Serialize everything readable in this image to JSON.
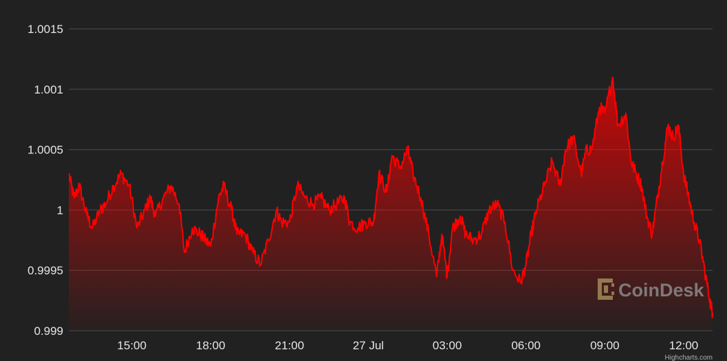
{
  "chart_data": {
    "type": "area",
    "xlabel": "",
    "ylabel": "",
    "ylim": [
      0.999,
      1.0015
    ],
    "y_ticks": [
      "0.999",
      "0.9995",
      "1",
      "1.0005",
      "1.001",
      "1.0015"
    ],
    "x_ticks": [
      "15:00",
      "18:00",
      "21:00",
      "27 Jul",
      "03:00",
      "06:00",
      "09:00",
      "12:00"
    ],
    "x_tick_hours": [
      15,
      18,
      21,
      24,
      27,
      30,
      33,
      36
    ],
    "x_unit": "hours after 00:00 on 26 Jul",
    "xlim": [
      12.6,
      37.1
    ],
    "grid": true,
    "legend": "none",
    "series": [
      {
        "x": [
          12.6,
          12.8,
          13.0,
          13.3,
          13.5,
          13.8,
          14.0,
          14.3,
          14.6,
          14.9,
          15.2,
          15.5,
          15.7,
          15.9,
          16.2,
          16.5,
          16.8,
          17.0,
          17.3,
          17.6,
          17.8,
          18.0,
          18.3,
          18.5,
          18.8,
          19.0,
          19.3,
          19.6,
          19.9,
          20.2,
          20.5,
          20.7,
          21.0,
          21.3,
          21.6,
          21.9,
          22.2,
          22.5,
          22.8,
          23.1,
          23.3,
          23.6,
          23.9,
          24.2,
          24.4,
          24.7,
          24.9,
          25.2,
          25.5,
          25.7,
          26.0,
          26.3,
          26.6,
          26.8,
          27.0,
          27.2,
          27.5,
          27.7,
          28.0,
          28.3,
          28.6,
          28.9,
          29.2,
          29.5,
          29.8,
          30.0,
          30.2,
          30.4,
          30.7,
          31.0,
          31.3,
          31.5,
          31.8,
          32.1,
          32.3,
          32.5,
          32.8,
          33.0,
          33.3,
          33.5,
          33.8,
          34.0,
          34.2,
          34.4,
          34.6,
          34.8,
          35.0,
          35.2,
          35.4,
          35.6,
          35.8,
          36.0,
          36.2,
          36.4,
          36.6,
          36.8,
          37.0,
          37.1
        ],
        "values": [
          1.0003,
          1.0001,
          1.0002,
          0.99995,
          0.99985,
          1.0,
          1.00005,
          1.0002,
          1.0003,
          1.0002,
          0.99985,
          1.0,
          1.0001,
          0.99995,
          1.0001,
          1.0002,
          1.00005,
          0.99965,
          0.99985,
          0.9998,
          0.99975,
          0.9997,
          1.0001,
          1.0002,
          1.0,
          0.9998,
          0.9998,
          0.99965,
          0.99955,
          0.99975,
          1.0,
          0.9999,
          0.9999,
          1.0002,
          1.0001,
          1.00005,
          1.0001,
          1.0,
          1.00005,
          1.0001,
          0.9999,
          0.99985,
          0.9999,
          0.9999,
          1.0003,
          1.00015,
          1.00045,
          1.00035,
          1.0005,
          1.0003,
          1.0001,
          0.9998,
          0.99945,
          0.9998,
          0.99945,
          0.99985,
          0.99995,
          0.9998,
          0.99975,
          0.9998,
          1.0,
          1.00005,
          0.9999,
          0.9995,
          0.9994,
          0.99955,
          0.9998,
          1.0,
          1.0002,
          1.0004,
          1.0002,
          1.0005,
          1.0006,
          1.0003,
          1.0005,
          1.0005,
          1.00085,
          1.0008,
          1.0011,
          1.0007,
          1.0008,
          1.0004,
          1.0003,
          1.0002,
          0.99995,
          0.9998,
          1.0001,
          1.0004,
          1.0007,
          1.0006,
          1.0007,
          1.0003,
          1.0001,
          0.9999,
          0.99975,
          0.9995,
          0.99925,
          0.99915
        ]
      }
    ]
  },
  "watermark": "CoinDesk",
  "credit": "Highcharts.com",
  "colors": {
    "background": "#212121",
    "line": "#ff0000",
    "grid": "#4d4d4d",
    "axis_label": "#e6e6e6"
  }
}
